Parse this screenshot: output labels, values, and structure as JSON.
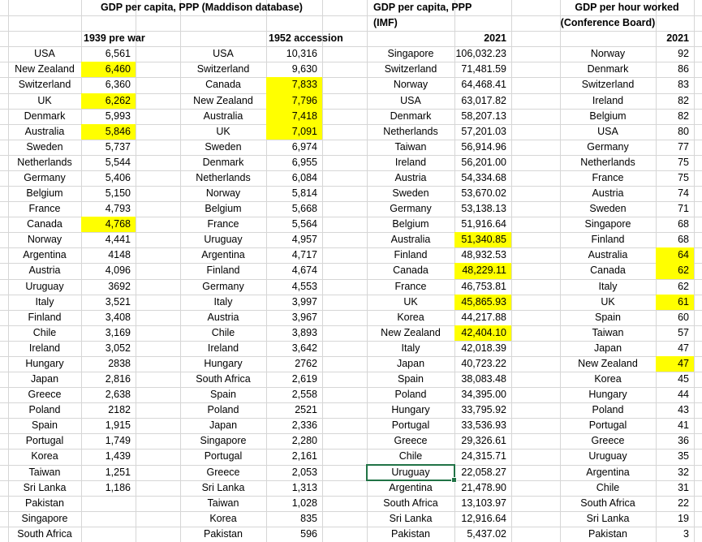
{
  "colors": {
    "highlight": "#ffff00",
    "selection_border": "#217346",
    "gridline": "#d6d6d6",
    "text": "#000000",
    "background": "#ffffff"
  },
  "headers": {
    "maddison_title": "GDP per capita, PPP (Maddison database)",
    "imf_title": "GDP per capita, PPP",
    "imf_subtitle": "(IMF)",
    "hours_title": "GDP per hour worked",
    "hours_subtitle": "(Conference Board)",
    "col1_label": "1939 pre war",
    "col2_label": "1952 accession",
    "col3_label": "2021",
    "col4_label": "2021"
  },
  "selection": {
    "group": 2,
    "row": 27,
    "field": "c",
    "country": "Uruguay"
  },
  "groups": [
    {
      "name": "gdp-per-capita-1939-pre-war",
      "rows": [
        {
          "c": "USA",
          "v": "6,561"
        },
        {
          "c": "New Zealand",
          "v": "6,460",
          "h": true
        },
        {
          "c": "Switzerland",
          "v": "6,360"
        },
        {
          "c": "UK",
          "v": "6,262",
          "h": true
        },
        {
          "c": "Denmark",
          "v": "5,993"
        },
        {
          "c": "Australia",
          "v": "5,846",
          "h": true
        },
        {
          "c": "Sweden",
          "v": "5,737"
        },
        {
          "c": "Netherlands",
          "v": "5,544"
        },
        {
          "c": "Germany",
          "v": "5,406"
        },
        {
          "c": "Belgium",
          "v": "5,150"
        },
        {
          "c": "France",
          "v": "4,793"
        },
        {
          "c": "Canada",
          "v": "4,768",
          "h": true
        },
        {
          "c": "Norway",
          "v": "4,441"
        },
        {
          "c": "Argentina",
          "v": "4148"
        },
        {
          "c": "Austria",
          "v": "4,096"
        },
        {
          "c": "Uruguay",
          "v": "3692"
        },
        {
          "c": "Italy",
          "v": "3,521"
        },
        {
          "c": "Finland",
          "v": "3,408"
        },
        {
          "c": "Chile",
          "v": "3,169"
        },
        {
          "c": "Ireland",
          "v": "3,052"
        },
        {
          "c": "Hungary",
          "v": "2838"
        },
        {
          "c": "Japan",
          "v": "2,816"
        },
        {
          "c": "Greece",
          "v": "2,638"
        },
        {
          "c": "Poland",
          "v": "2182"
        },
        {
          "c": "Spain",
          "v": "1,915"
        },
        {
          "c": "Portugal",
          "v": "1,749"
        },
        {
          "c": "Korea",
          "v": "1,439"
        },
        {
          "c": "Taiwan",
          "v": "1,251"
        },
        {
          "c": "Sri Lanka",
          "v": "1,186"
        },
        {
          "c": "Pakistan",
          "v": ""
        },
        {
          "c": "Singapore",
          "v": ""
        },
        {
          "c": "South Africa",
          "v": ""
        }
      ]
    },
    {
      "name": "gdp-per-capita-1952-accession",
      "rows": [
        {
          "c": "USA",
          "v": "10,316"
        },
        {
          "c": "Switzerland",
          "v": "9,630"
        },
        {
          "c": "Canada",
          "v": "7,833",
          "h": true
        },
        {
          "c": "New Zealand",
          "v": "7,796",
          "h": true
        },
        {
          "c": "Australia",
          "v": "7,418",
          "h": true
        },
        {
          "c": "UK",
          "v": "7,091",
          "h": true
        },
        {
          "c": "Sweden",
          "v": "6,974"
        },
        {
          "c": "Denmark",
          "v": "6,955"
        },
        {
          "c": "Netherlands",
          "v": "6,084"
        },
        {
          "c": "Norway",
          "v": "5,814"
        },
        {
          "c": "Belgium",
          "v": "5,668"
        },
        {
          "c": "France",
          "v": "5,564"
        },
        {
          "c": "Uruguay",
          "v": "4,957"
        },
        {
          "c": "Argentina",
          "v": "4,717"
        },
        {
          "c": "Finland",
          "v": "4,674"
        },
        {
          "c": "Germany",
          "v": "4,553"
        },
        {
          "c": "Italy",
          "v": "3,997"
        },
        {
          "c": "Austria",
          "v": "3,967"
        },
        {
          "c": "Chile",
          "v": "3,893"
        },
        {
          "c": "Ireland",
          "v": "3,642"
        },
        {
          "c": "Hungary",
          "v": "2762"
        },
        {
          "c": "South Africa",
          "v": "2,619"
        },
        {
          "c": "Spain",
          "v": "2,558"
        },
        {
          "c": "Poland",
          "v": "2521"
        },
        {
          "c": "Japan",
          "v": "2,336"
        },
        {
          "c": "Singapore",
          "v": "2,280"
        },
        {
          "c": "Portugal",
          "v": "2,161"
        },
        {
          "c": "Greece",
          "v": "2,053"
        },
        {
          "c": "Sri Lanka",
          "v": "1,313"
        },
        {
          "c": "Taiwan",
          "v": "1,028"
        },
        {
          "c": "Korea",
          "v": "835"
        },
        {
          "c": "Pakistan",
          "v": "596"
        }
      ]
    },
    {
      "name": "gdp-per-capita-imf-2021",
      "rows": [
        {
          "c": "Singapore",
          "v": "106,032.23"
        },
        {
          "c": "Switzerland",
          "v": "71,481.59"
        },
        {
          "c": "Norway",
          "v": "64,468.41"
        },
        {
          "c": "USA",
          "v": "63,017.82"
        },
        {
          "c": "Denmark",
          "v": "58,207.13"
        },
        {
          "c": "Netherlands",
          "v": "57,201.03"
        },
        {
          "c": "Taiwan",
          "v": "56,914.96"
        },
        {
          "c": "Ireland",
          "v": "56,201.00"
        },
        {
          "c": "Austria",
          "v": "54,334.68"
        },
        {
          "c": "Sweden",
          "v": "53,670.02"
        },
        {
          "c": "Germany",
          "v": "53,138.13"
        },
        {
          "c": "Belgium",
          "v": "51,916.64"
        },
        {
          "c": "Australia",
          "v": "51,340.85",
          "h": true
        },
        {
          "c": "Finland",
          "v": "48,932.53"
        },
        {
          "c": "Canada",
          "v": "48,229.11",
          "h": true
        },
        {
          "c": "France",
          "v": "46,753.81"
        },
        {
          "c": "UK",
          "v": "45,865.93",
          "h": true
        },
        {
          "c": "Korea",
          "v": "44,217.88"
        },
        {
          "c": "New Zealand",
          "v": "42,404.10",
          "h": true
        },
        {
          "c": "Italy",
          "v": "42,018.39"
        },
        {
          "c": "Japan",
          "v": "40,723.22"
        },
        {
          "c": "Spain",
          "v": "38,083.48"
        },
        {
          "c": "Poland",
          "v": "34,395.00"
        },
        {
          "c": "Hungary",
          "v": "33,795.92"
        },
        {
          "c": "Portugal",
          "v": "33,536.93"
        },
        {
          "c": "Greece",
          "v": "29,326.61"
        },
        {
          "c": "Chile",
          "v": "24,315.71"
        },
        {
          "c": "Uruguay",
          "v": "22,058.27"
        },
        {
          "c": "Argentina",
          "v": "21,478.90"
        },
        {
          "c": "South Africa",
          "v": "13,103.97"
        },
        {
          "c": "Sri Lanka",
          "v": "12,916.64"
        },
        {
          "c": "Pakistan",
          "v": "5,437.02"
        }
      ]
    },
    {
      "name": "gdp-per-hour-worked-2021",
      "rows": [
        {
          "c": "Norway",
          "v": "92"
        },
        {
          "c": "Denmark",
          "v": "86"
        },
        {
          "c": "Switzerland",
          "v": "83"
        },
        {
          "c": "Ireland",
          "v": "82"
        },
        {
          "c": "Belgium",
          "v": "82"
        },
        {
          "c": "USA",
          "v": "80"
        },
        {
          "c": "Germany",
          "v": "77"
        },
        {
          "c": "Netherlands",
          "v": "75"
        },
        {
          "c": "France",
          "v": "75"
        },
        {
          "c": "Austria",
          "v": "74"
        },
        {
          "c": "Sweden",
          "v": "71"
        },
        {
          "c": "Singapore",
          "v": "68"
        },
        {
          "c": "Finland",
          "v": "68"
        },
        {
          "c": "Australia",
          "v": "64",
          "h": true
        },
        {
          "c": "Canada",
          "v": "62",
          "h": true
        },
        {
          "c": "Italy",
          "v": "62"
        },
        {
          "c": "UK",
          "v": "61",
          "h": true
        },
        {
          "c": "Spain",
          "v": "60"
        },
        {
          "c": "Taiwan",
          "v": "57"
        },
        {
          "c": "Japan",
          "v": "47"
        },
        {
          "c": "New Zealand",
          "v": "47",
          "h": true
        },
        {
          "c": "Korea",
          "v": "45"
        },
        {
          "c": "Hungary",
          "v": "44"
        },
        {
          "c": "Poland",
          "v": "43"
        },
        {
          "c": "Portugal",
          "v": "41"
        },
        {
          "c": "Greece",
          "v": "36"
        },
        {
          "c": "Uruguay",
          "v": "35"
        },
        {
          "c": "Argentina",
          "v": "32"
        },
        {
          "c": "Chile",
          "v": "31"
        },
        {
          "c": "South Africa",
          "v": "22"
        },
        {
          "c": "Sri Lanka",
          "v": "19"
        },
        {
          "c": "Pakistan",
          "v": "3"
        }
      ]
    }
  ]
}
